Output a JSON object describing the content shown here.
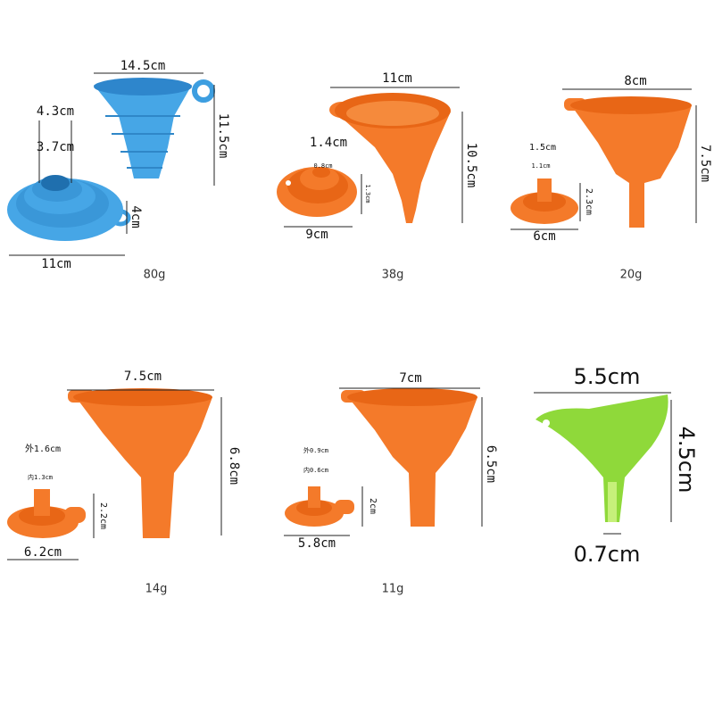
{
  "panels": [
    {
      "weight": "80g",
      "dims": [
        "14.5cm",
        "11.5cm",
        "4.3cm",
        "3.7cm",
        "4cm",
        "11cm"
      ]
    },
    {
      "weight": "38g",
      "dims": [
        "11cm",
        "10.5cm",
        "1.4cm",
        "0.8cm",
        "1.3cm",
        "9cm"
      ]
    },
    {
      "weight": "20g",
      "dims": [
        "8cm",
        "7.5cm",
        "1.5cm",
        "1.1cm",
        "2.3cm",
        "6cm"
      ]
    },
    {
      "weight": "14g",
      "dims": [
        "7.5cm",
        "6.8cm",
        "外1.6cm",
        "内1.3cm",
        "2.2cm",
        "6.2cm"
      ]
    },
    {
      "weight": "11g",
      "dims": [
        "7cm",
        "6.5cm",
        "外0.9cm",
        "内0.6cm",
        "2cm",
        "5.8cm"
      ]
    },
    {
      "dims": [
        "5.5cm",
        "4.5cm",
        "0.7cm"
      ]
    }
  ]
}
